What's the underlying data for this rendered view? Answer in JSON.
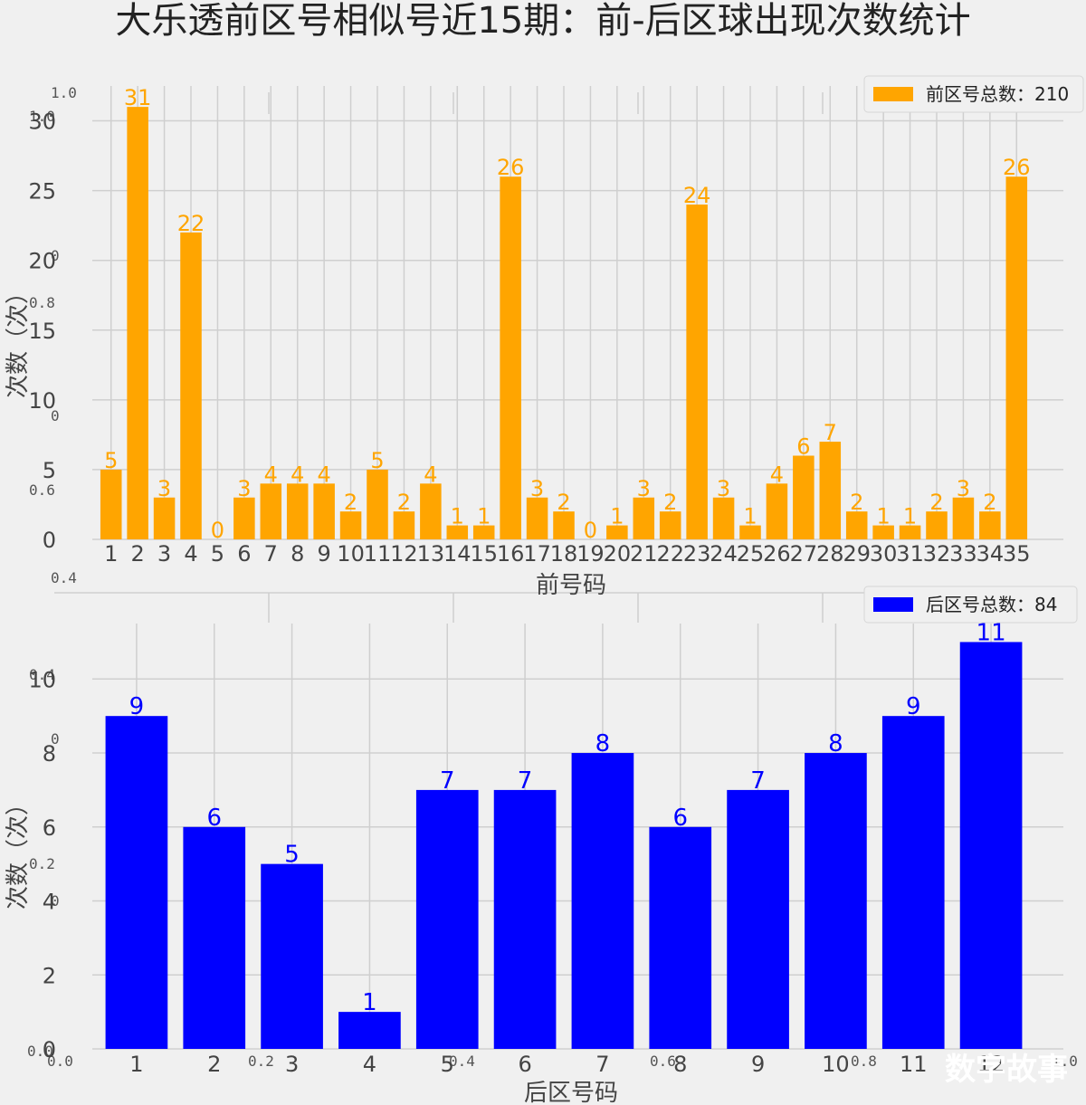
{
  "title": "大乐透前区号相似号近15期：前-后区球出现次数统计",
  "watermark": "数字故事",
  "chart_data": [
    {
      "type": "bar",
      "categories": [
        "1",
        "2",
        "3",
        "4",
        "5",
        "6",
        "7",
        "8",
        "9",
        "10",
        "11",
        "12",
        "13",
        "14",
        "15",
        "16",
        "17",
        "18",
        "19",
        "20",
        "21",
        "22",
        "23",
        "24",
        "25",
        "26",
        "27",
        "28",
        "29",
        "30",
        "31",
        "32",
        "33",
        "34",
        "35"
      ],
      "values": [
        5,
        31,
        3,
        22,
        0,
        3,
        4,
        4,
        4,
        2,
        5,
        2,
        4,
        1,
        1,
        26,
        3,
        2,
        0,
        1,
        3,
        2,
        24,
        3,
        1,
        4,
        6,
        7,
        2,
        1,
        1,
        2,
        3,
        2,
        26
      ],
      "color": "#ffa500",
      "legend": "前区号总数：210",
      "legend_placement": "top-right",
      "xlabel": "前号码",
      "ylabel": "次数（次）",
      "yticks": [
        0,
        5,
        10,
        15,
        20,
        25,
        30
      ],
      "ylim": [
        0,
        32.5
      ],
      "grid": true
    },
    {
      "type": "bar",
      "categories": [
        "1",
        "2",
        "3",
        "4",
        "5",
        "6",
        "7",
        "8",
        "9",
        "10",
        "11",
        "12"
      ],
      "values": [
        9,
        6,
        5,
        1,
        7,
        7,
        8,
        6,
        7,
        8,
        9,
        11
      ],
      "color": "#0000ff",
      "legend": "后区号总数：84",
      "legend_placement": "top-right",
      "xlabel": "后区号码",
      "ylabel": "次数（次）",
      "yticks": [
        0,
        2,
        4,
        6,
        8,
        10
      ],
      "ylim": [
        0,
        11.5
      ],
      "grid": true
    }
  ],
  "ghost_axis": {
    "yticks": [
      "1.0",
      "1.0",
      "0",
      "0.8",
      "0",
      "0.6",
      "0.4",
      "0.4",
      "0",
      "0.2",
      "0",
      "0.0"
    ],
    "xticks": [
      "0.0",
      "0.2",
      "0.4",
      "0.6",
      "0.8",
      "1.0"
    ]
  }
}
